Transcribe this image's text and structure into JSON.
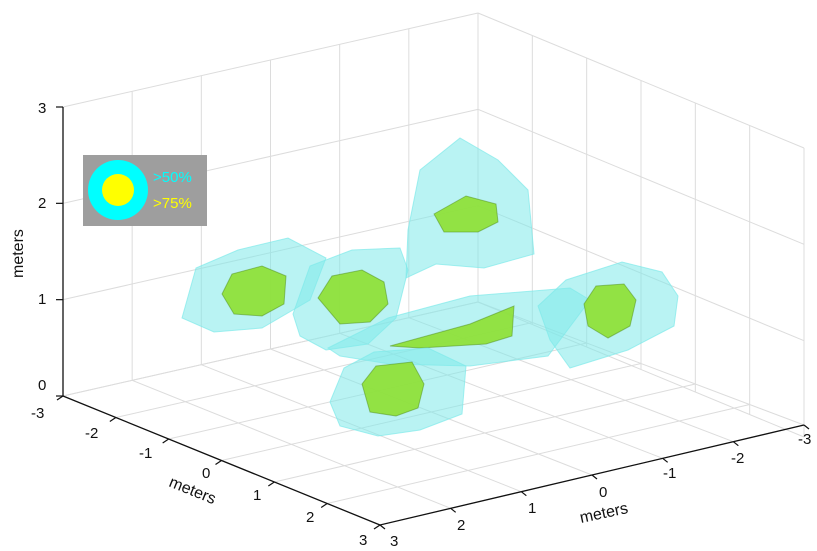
{
  "chart_data": {
    "type": "3d-isosurface",
    "axes": {
      "x": {
        "label": "meters",
        "ticks": [
          "-3",
          "-2",
          "-1",
          "0",
          "1",
          "2",
          "3"
        ],
        "range": [
          -3,
          3
        ]
      },
      "y": {
        "label": "meters",
        "ticks": [
          "-3",
          "-2",
          "-1",
          "0",
          "1",
          "2",
          "3"
        ],
        "range": [
          -3,
          3
        ]
      },
      "z": {
        "label": "meters",
        "ticks": [
          "0",
          "1",
          "2",
          "3"
        ],
        "range": [
          0,
          3
        ]
      }
    },
    "grid": true,
    "legend": {
      "position": "top-left",
      "background": "#9e9e9e",
      "entries": [
        {
          "label": ">50%",
          "color": "#00ffff"
        },
        {
          "label": ">75%",
          "color": "#ffff00"
        }
      ]
    },
    "colors": {
      "outer": "#7fe9ea",
      "inner": "#8fe03a"
    }
  }
}
